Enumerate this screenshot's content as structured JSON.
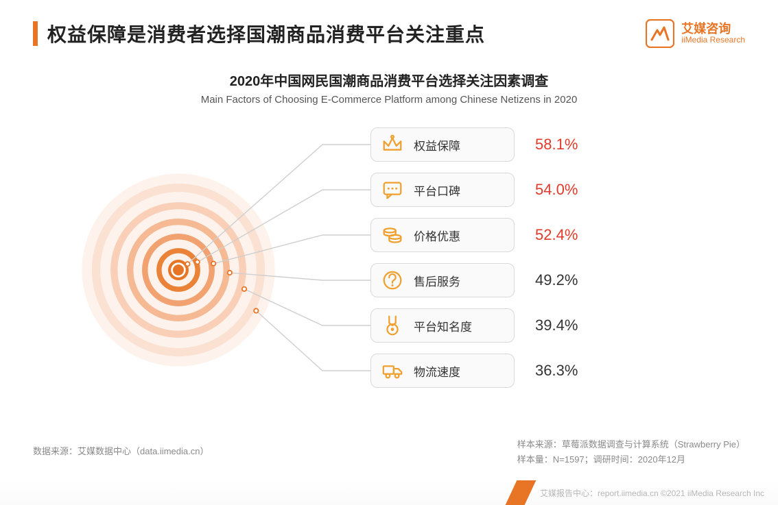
{
  "header": {
    "title": "权益保障是消费者选择国潮商品消费平台关注重点",
    "brand_cn": "艾媒咨询",
    "brand_en": "iiMedia Research"
  },
  "subtitle": {
    "cn": "2020年中国网民国潮商品消费平台选择关注因素调查",
    "en": "Main Factors of Choosing E-Commerce Platform among Chinese Netizens in 2020"
  },
  "chart": {
    "type": "radial-infographic",
    "accent_color": "#e87525",
    "highlight_text_color": "#e03a2a",
    "normal_text_color": "#333333",
    "pill_border": "#d9d9d9",
    "background": "#ffffff",
    "line_color": "#cfcfcf",
    "icon_stroke": "#f0a02f",
    "rings": [
      {
        "r": 16,
        "fill": "#e87525"
      },
      {
        "r": 30,
        "fill": "none",
        "stroke": "#e87525",
        "sw": 8,
        "op": 0.9
      },
      {
        "r": 52,
        "fill": "none",
        "stroke": "#ee935a",
        "sw": 9,
        "op": 0.85
      },
      {
        "r": 75,
        "fill": "none",
        "stroke": "#f2aa7e",
        "sw": 10,
        "op": 0.8
      },
      {
        "r": 100,
        "fill": "none",
        "stroke": "#f6c1a1",
        "sw": 11,
        "op": 0.7
      },
      {
        "r": 128,
        "fill": "none",
        "stroke": "#f9d7c3",
        "sw": 13,
        "op": 0.65
      },
      {
        "r": 150,
        "fill": "#fceadd",
        "op": 0.55
      }
    ],
    "factors": [
      {
        "icon": "crown",
        "label": "权益保障",
        "value": "58.1%",
        "highlight": true
      },
      {
        "icon": "chat",
        "label": "平台口碑",
        "value": "54.0%",
        "highlight": true
      },
      {
        "icon": "coins",
        "label": "价格优惠",
        "value": "52.4%",
        "highlight": true
      },
      {
        "icon": "question",
        "label": "售后服务",
        "value": "49.2%",
        "highlight": false
      },
      {
        "icon": "medal",
        "label": "平台知名度",
        "value": "39.4%",
        "highlight": false
      },
      {
        "icon": "truck",
        "label": "物流速度",
        "value": "36.3%",
        "highlight": false
      }
    ],
    "connector_targets_y": [
      37,
      103,
      169,
      235,
      301,
      367
    ],
    "connector_origin_radii": [
      16,
      30,
      52,
      75,
      100,
      128
    ]
  },
  "footnotes": {
    "source_left": "数据来源：艾媒数据中心（data.iimedia.cn）",
    "sample_source": "样本来源：草莓派数据调查与计算系统（Strawberry Pie）",
    "sample_n": "样本量：N=1597；调研时间：2020年12月",
    "report_center": "艾媒报告中心：report.iimedia.cn   ©2021  iiMedia Research  Inc"
  }
}
